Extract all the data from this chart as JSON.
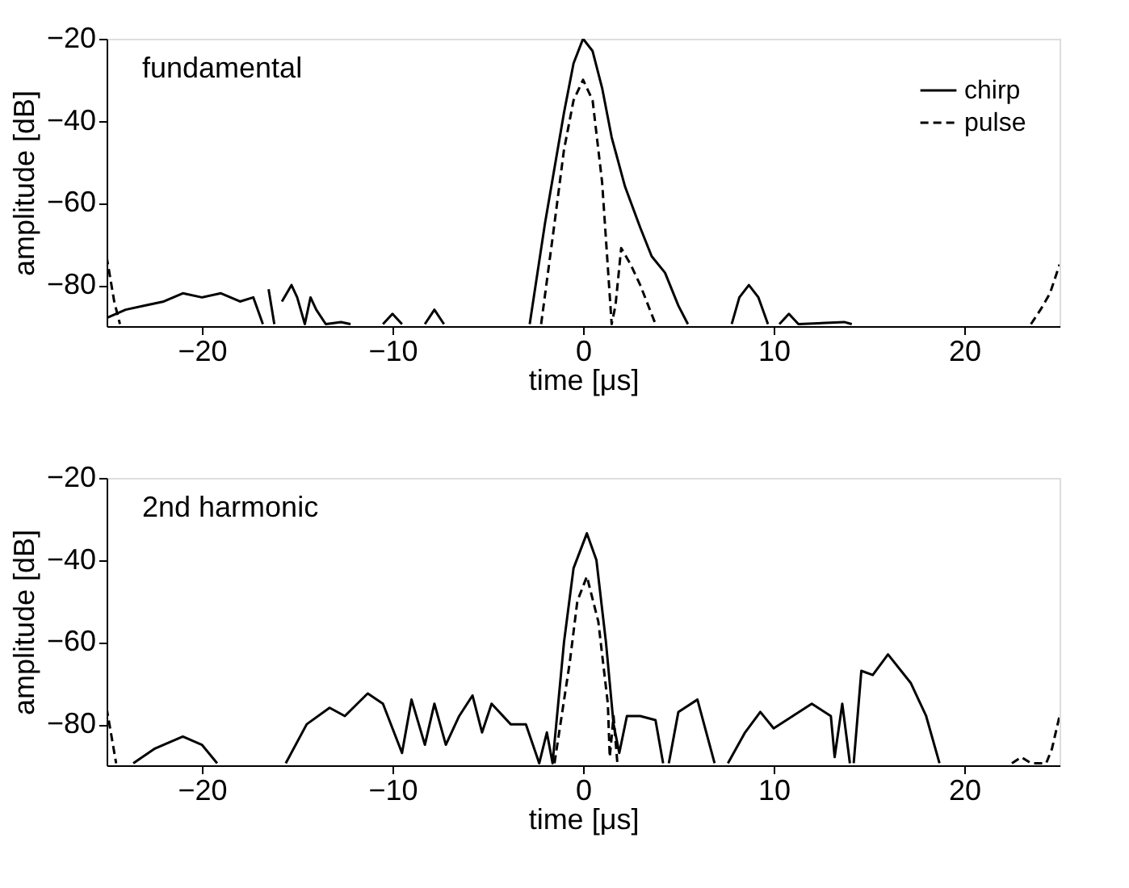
{
  "chart_data": [
    {
      "type": "line",
      "xlabel": "time [μs]",
      "ylabel": "amplitude [dB]",
      "xlim": [
        -25,
        25
      ],
      "ylim": [
        -90,
        -20
      ],
      "xticks": [
        -20,
        -10,
        0,
        10,
        20
      ],
      "yticks": [
        -20,
        -40,
        -60,
        -80
      ],
      "grid": false,
      "legend": "top right",
      "annotations": [
        "fundamental"
      ],
      "series": [
        {
          "name": "chirp",
          "color": "#000000",
          "line_style": "solid",
          "x": [
            -25,
            -24,
            -23,
            -22,
            -21,
            -20,
            -19,
            -18,
            -17.3,
            -16.8,
            -16.65,
            -16.5,
            -16.2,
            -16,
            -15.8,
            -15.3,
            -15,
            -14.6,
            -14.3,
            -14,
            -13.5,
            -12.7,
            -12.2,
            -12,
            -10.5,
            -10,
            -9.5,
            -9,
            -8.3,
            -7.8,
            -7.3,
            -5,
            -2.8,
            -2,
            -1,
            -0.5,
            0,
            0.5,
            1,
            1.5,
            2.2,
            3,
            3.6,
            4.3,
            5,
            5.5,
            6.5,
            7.8,
            8.2,
            8.7,
            9.2,
            9.7,
            10,
            10.3,
            10.8,
            11.3,
            13.7,
            14.1
          ],
          "values": [
            -88,
            -86,
            -85,
            -84,
            -82,
            -83,
            -82,
            -84,
            -83,
            -89.5,
            null,
            -81,
            -89.5,
            null,
            -84,
            -80,
            -83,
            -89.5,
            -83,
            -86,
            -89.5,
            -89,
            -89.5,
            null,
            -89.5,
            -87,
            -89.5,
            null,
            -89.5,
            -86,
            -89.5,
            null,
            -89.5,
            -65,
            -38,
            -26,
            -20,
            -23,
            -32,
            -44,
            -56,
            -66,
            -73,
            -77,
            -85,
            -89.5,
            null,
            -89.5,
            -83,
            -80,
            -83,
            -89.5,
            null,
            -89.5,
            -87,
            -89.5,
            -89,
            -89.5
          ]
        },
        {
          "name": "pulse",
          "color": "#000000",
          "line_style": "dashed",
          "x": [
            -25,
            -24.6,
            -24.3,
            -24,
            -2.2,
            -1.5,
            -1,
            -0.5,
            0,
            0.5,
            1,
            1.5,
            1.7,
            2,
            2.5,
            3,
            3.8,
            4,
            23.5,
            24,
            24.5,
            25
          ],
          "values": [
            -73,
            -84,
            -89.5,
            null,
            -89.5,
            -65,
            -47,
            -35,
            -30,
            -35,
            -55,
            -89.5,
            -85,
            -71,
            -75,
            -80,
            -89.5,
            null,
            -89.5,
            -86,
            -82,
            -75
          ]
        }
      ]
    },
    {
      "type": "line",
      "xlabel": "time [μs]",
      "ylabel": "amplitude [dB]",
      "xlim": [
        -25,
        25
      ],
      "ylim": [
        -90,
        -20
      ],
      "xticks": [
        -20,
        -10,
        0,
        10,
        20
      ],
      "yticks": [
        -20,
        -40,
        -60,
        -80
      ],
      "grid": false,
      "legend": false,
      "annotations": [
        "2nd harmonic"
      ],
      "series": [
        {
          "name": "chirp",
          "color": "#000000",
          "line_style": "solid",
          "x": [
            -23.6,
            -22.5,
            -21,
            -20,
            -19.2,
            -17,
            -15.6,
            -14.5,
            -13.3,
            -12.5,
            -11.3,
            -10.5,
            -9.5,
            -9,
            -8.3,
            -7.8,
            -7.2,
            -6.5,
            -5.8,
            -5.3,
            -4.8,
            -3.8,
            -3,
            -2.3,
            -1.9,
            -1.6,
            -1,
            -0.5,
            0.2,
            0.7,
            1.2,
            1.6,
            1.9,
            2.3,
            3,
            3.8,
            4.2,
            4.35,
            4.5,
            5,
            6,
            6.9,
            7.2,
            7.6,
            8.5,
            9.3,
            10,
            11,
            12,
            13,
            13.2,
            13.6,
            14,
            14.1,
            14.2,
            14.6,
            15.2,
            16,
            17.2,
            18,
            18.7
          ],
          "values": [
            -89.5,
            -86,
            -83,
            -85,
            -89.5,
            null,
            -89.5,
            -80,
            -76,
            -78,
            -72.5,
            -75,
            -87,
            -74,
            -85,
            -75,
            -85,
            -78,
            -73,
            -82,
            -75,
            -80,
            -80,
            -89.5,
            -82,
            -89.5,
            -60,
            -42,
            -33.5,
            -40,
            -60,
            -80,
            -87,
            -78,
            -78,
            -79,
            -89.5,
            null,
            -89.5,
            -77,
            -74,
            -89.5,
            null,
            -89.5,
            -82,
            -77,
            -81,
            -78,
            -75,
            -78,
            -88,
            -75,
            -89.5,
            null,
            -89.5,
            -67,
            -68,
            -63,
            -70,
            -78,
            -89.5
          ]
        },
        {
          "name": "pulse",
          "color": "#000000",
          "line_style": "dashed",
          "x": [
            -25,
            -24.5,
            -24,
            -1.5,
            -0.7,
            -0.3,
            0.2,
            0.8,
            1.3,
            1.4,
            1.6,
            1.8,
            2,
            22.5,
            23,
            23.5,
            24.3,
            24.6,
            25
          ],
          "values": [
            -76,
            -89.5,
            null,
            -89.5,
            -65,
            -50,
            -44,
            -55,
            -75,
            -88,
            -78,
            -89.5,
            null,
            -89.5,
            -88,
            -89.5,
            -89.5,
            -86,
            -78
          ]
        }
      ]
    }
  ]
}
